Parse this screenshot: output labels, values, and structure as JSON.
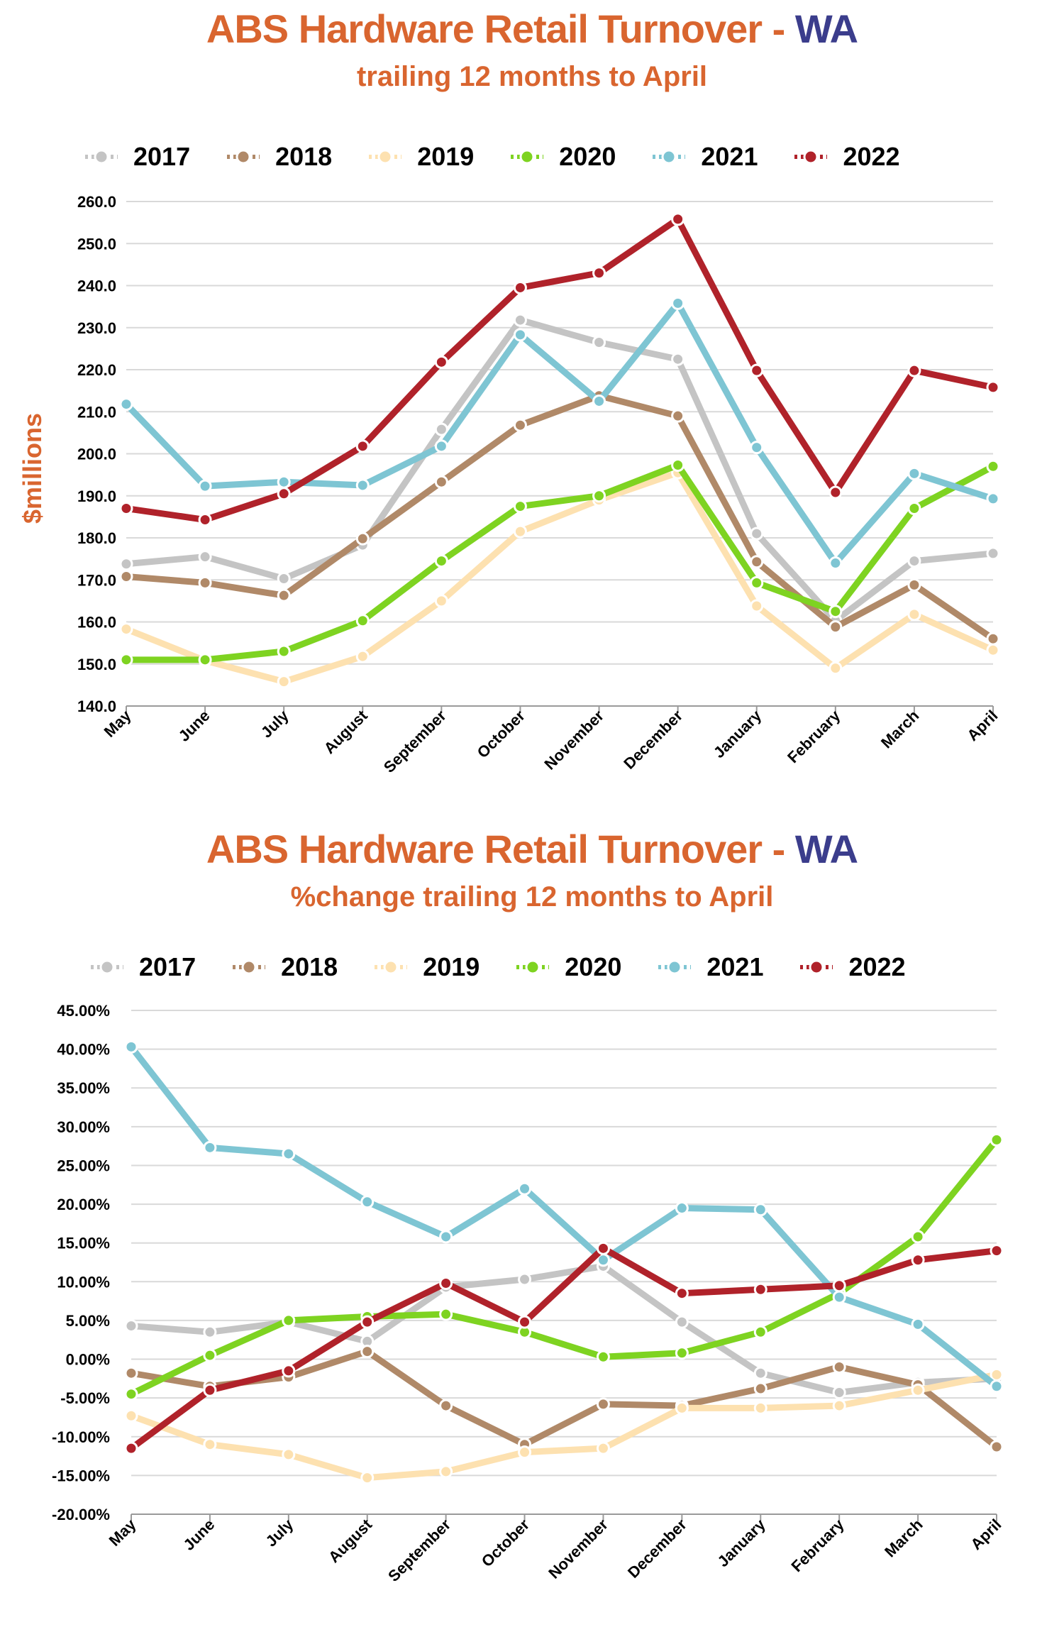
{
  "chart_data": [
    {
      "type": "line",
      "title": "ABS Hardware Retail Turnover - ",
      "title_suffix": "WA",
      "subtitle": "trailing 12 months to April",
      "ylabel": "$millions",
      "ylim": [
        140,
        260
      ],
      "ytick_step": 10,
      "ytick_labels": [
        "140.0",
        "150.0",
        "160.0",
        "170.0",
        "180.0",
        "190.0",
        "200.0",
        "210.0",
        "220.0",
        "230.0",
        "240.0",
        "250.0",
        "260.0"
      ],
      "legend_position": "top",
      "grid": true,
      "categories": [
        "May",
        "June",
        "July",
        "August",
        "September",
        "October",
        "November",
        "December",
        "January",
        "February",
        "March",
        "April"
      ],
      "series": [
        {
          "name": "2017",
          "color": "#c4c4c4",
          "values": [
            173.8,
            175.5,
            170.3,
            178.3,
            205.8,
            231.8,
            226.5,
            222.5,
            181.0,
            160.3,
            174.5,
            176.3
          ]
        },
        {
          "name": "2018",
          "color": "#b08968",
          "values": [
            170.8,
            169.3,
            166.3,
            179.8,
            193.3,
            206.8,
            213.8,
            209.0,
            174.3,
            158.8,
            168.8,
            156.0
          ]
        },
        {
          "name": "2019",
          "color": "#fde1b0",
          "values": [
            158.3,
            150.8,
            145.8,
            151.8,
            165.0,
            181.5,
            189.0,
            195.5,
            163.8,
            149.0,
            161.8,
            153.3
          ]
        },
        {
          "name": "2020",
          "color": "#7ed321",
          "values": [
            151.0,
            151.0,
            153.0,
            160.3,
            174.5,
            187.5,
            190.0,
            197.3,
            169.3,
            162.5,
            187.0,
            197.0
          ]
        },
        {
          "name": "2021",
          "color": "#7ec5d3",
          "values": [
            211.8,
            192.3,
            193.3,
            192.5,
            201.8,
            228.3,
            212.5,
            235.8,
            201.5,
            174.0,
            195.3,
            189.3
          ]
        },
        {
          "name": "2022",
          "color": "#b0222a",
          "values": [
            187.0,
            184.3,
            190.5,
            201.8,
            221.8,
            239.5,
            243.0,
            255.8,
            219.8,
            190.8,
            219.8,
            215.8
          ]
        }
      ]
    },
    {
      "type": "line",
      "title": "ABS Hardware Retail Turnover - ",
      "title_suffix": "WA",
      "subtitle": "%change trailing 12 months to April",
      "ylabel": "",
      "ylim": [
        -20,
        45
      ],
      "ytick_step": 5,
      "ytick_labels": [
        "-20.00%",
        "-15.00%",
        "-10.00%",
        "-5.00%",
        "0.00%",
        "5.00%",
        "10.00%",
        "15.00%",
        "20.00%",
        "25.00%",
        "30.00%",
        "35.00%",
        "40.00%",
        "45.00%"
      ],
      "legend_position": "top",
      "grid": true,
      "categories": [
        "May",
        "June",
        "July",
        "August",
        "September",
        "October",
        "November",
        "December",
        "January",
        "February",
        "March",
        "April"
      ],
      "series": [
        {
          "name": "2017",
          "color": "#c4c4c4",
          "values": [
            4.3,
            3.5,
            4.8,
            2.3,
            9.3,
            10.3,
            12.0,
            4.8,
            -1.8,
            -4.3,
            -3.0,
            -2.5
          ]
        },
        {
          "name": "2018",
          "color": "#b08968",
          "values": [
            -1.8,
            -3.5,
            -2.3,
            1.0,
            -6.0,
            -11.0,
            -5.8,
            -6.0,
            -3.8,
            -1.0,
            -3.3,
            -11.3
          ]
        },
        {
          "name": "2019",
          "color": "#fde1b0",
          "values": [
            -7.3,
            -11.0,
            -12.3,
            -15.3,
            -14.5,
            -12.0,
            -11.5,
            -6.3,
            -6.3,
            -6.0,
            -4.0,
            -2.0
          ]
        },
        {
          "name": "2020",
          "color": "#7ed321",
          "values": [
            -4.5,
            0.5,
            5.0,
            5.5,
            5.8,
            3.5,
            0.3,
            0.8,
            3.5,
            8.5,
            15.8,
            28.3
          ]
        },
        {
          "name": "2021",
          "color": "#7ec5d3",
          "values": [
            40.3,
            27.3,
            26.5,
            20.3,
            15.8,
            22.0,
            12.8,
            19.5,
            19.3,
            8.0,
            4.5,
            -3.5
          ]
        },
        {
          "name": "2022",
          "color": "#b0222a",
          "values": [
            -11.5,
            -4.0,
            -1.5,
            4.8,
            9.8,
            4.8,
            14.3,
            8.5,
            9.0,
            9.5,
            12.8,
            14.0
          ]
        }
      ]
    }
  ]
}
